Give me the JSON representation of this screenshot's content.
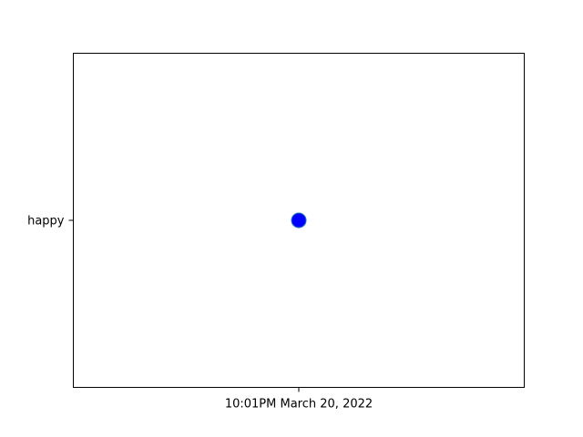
{
  "chart_data": {
    "type": "scatter",
    "x_categories": [
      "10:01PM March 20, 2022"
    ],
    "y_categories": [
      "happy"
    ],
    "points": [
      {
        "x": "10:01PM March 20, 2022",
        "y": "happy"
      }
    ],
    "title": "",
    "xlabel": "",
    "ylabel": "",
    "grid": false,
    "legend": "none",
    "colors": {
      "marker_fill": "#0000ff",
      "marker_edge": "#1f77b4",
      "axes": "#000000",
      "background": "#ffffff"
    }
  }
}
